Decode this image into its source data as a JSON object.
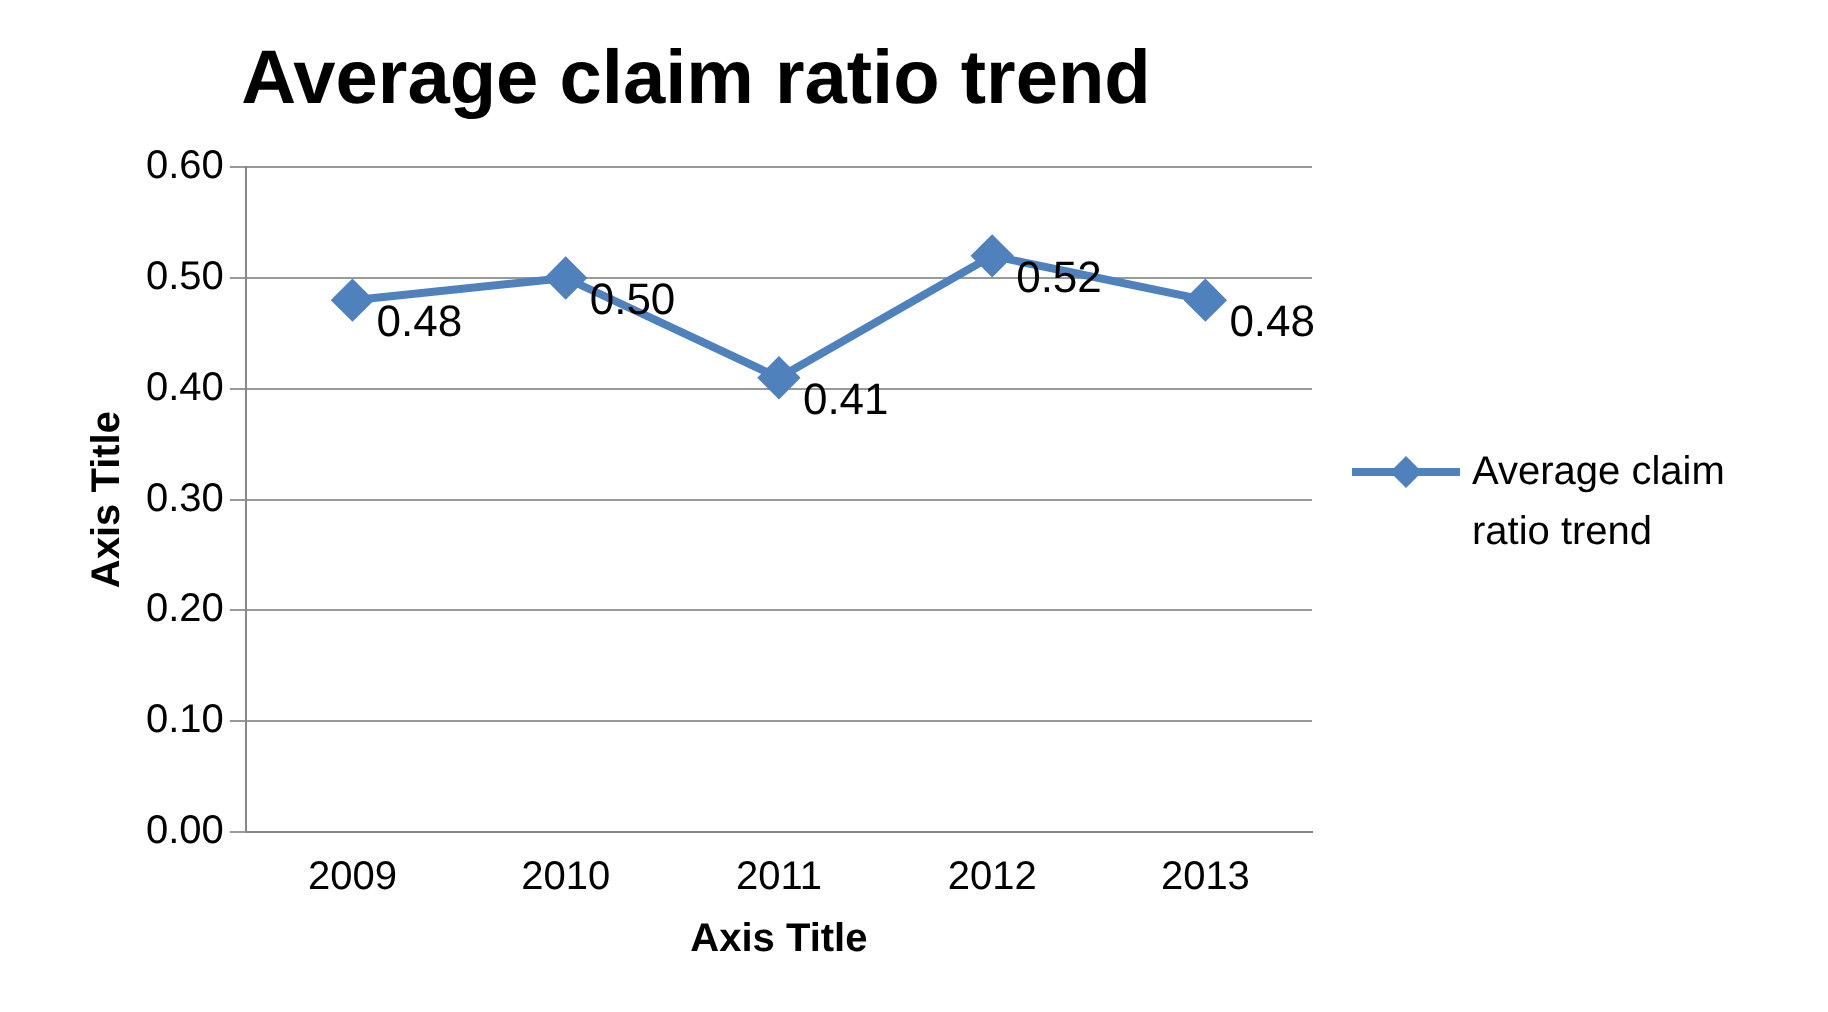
{
  "chart_data": {
    "type": "line",
    "title": "Average claim ratio trend",
    "xlabel": "Axis Title",
    "ylabel": "Axis Title",
    "categories": [
      "2009",
      "2010",
      "2011",
      "2012",
      "2013"
    ],
    "series": [
      {
        "name": "Average claim ratio trend",
        "color": "#4f81bd",
        "values": [
          0.48,
          0.5,
          0.41,
          0.52,
          0.48
        ],
        "value_labels": [
          "0.48",
          "0.50",
          "0.41",
          "0.52",
          "0.48"
        ]
      }
    ],
    "ylim": [
      0,
      0.6
    ],
    "yticks": [
      {
        "value": 0,
        "label": "0.00"
      },
      {
        "value": 0.1,
        "label": "0.10"
      },
      {
        "value": 0.2,
        "label": "0.20"
      },
      {
        "value": 0.3,
        "label": "0.30"
      },
      {
        "value": 0.4,
        "label": "0.40"
      },
      {
        "value": 0.5,
        "label": "0.50"
      },
      {
        "value": 0.6,
        "label": "0.60"
      }
    ],
    "grid": "y",
    "legend": "right",
    "marker": "diamond",
    "line_style": "solid"
  }
}
